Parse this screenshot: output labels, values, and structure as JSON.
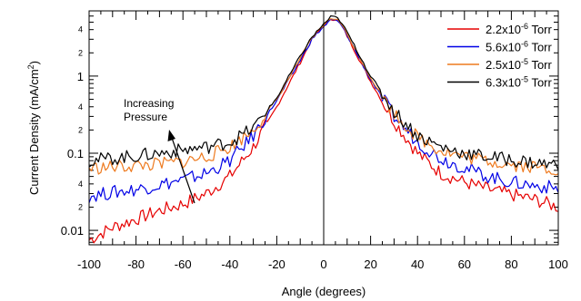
{
  "chart_data": {
    "type": "line",
    "title": "",
    "xlabel": "Angle (degrees)",
    "ylabel_main": "Current Density (mA/cm",
    "ylabel_sup": "2",
    "ylabel_close": ")",
    "xlim": [
      -100,
      100
    ],
    "ylim": [
      0.0065,
      7.0
    ],
    "yscale": "log",
    "x_ticks": [
      -100,
      -80,
      -60,
      -40,
      -20,
      0,
      20,
      40,
      60,
      80,
      100
    ],
    "x_tick_labels": [
      "-100",
      "-80",
      "-60",
      "-40",
      "-20",
      "0",
      "20",
      "40",
      "60",
      "80",
      "100"
    ],
    "y_major_ticks": [
      0.01,
      0.1,
      1
    ],
    "y_major_labels": [
      "0.01",
      "0.1",
      "1"
    ],
    "y_minor_labeled": [
      {
        "value": 0.02,
        "label": "2"
      },
      {
        "value": 0.04,
        "label": "4"
      },
      {
        "value": 0.2,
        "label": "2"
      },
      {
        "value": 0.4,
        "label": "4"
      },
      {
        "value": 2,
        "label": "2"
      },
      {
        "value": 4,
        "label": "4"
      }
    ],
    "vertical_line_x": 0,
    "legend_position": "top-right",
    "grid": false,
    "annotation": {
      "lines": [
        "Increasing",
        "Pressure"
      ],
      "arrow": "up"
    },
    "x": [
      -100,
      -90,
      -80,
      -70,
      -60,
      -50,
      -40,
      -30,
      -20,
      -10,
      -5,
      0,
      3,
      5,
      7,
      10,
      20,
      30,
      40,
      50,
      60,
      70,
      80,
      90,
      100
    ],
    "series": [
      {
        "name": "2.2x10",
        "exp": "-6",
        "unit": " Torr",
        "color": "#e60000",
        "values": [
          0.0075,
          0.011,
          0.014,
          0.018,
          0.022,
          0.03,
          0.05,
          0.12,
          0.4,
          1.5,
          3.0,
          4.5,
          5.5,
          5.5,
          4.9,
          3.3,
          0.85,
          0.26,
          0.1,
          0.055,
          0.042,
          0.034,
          0.029,
          0.025,
          0.02
        ]
      },
      {
        "name": "5.6x10",
        "exp": "-6",
        "unit": " Torr",
        "color": "#0000e6",
        "values": [
          0.028,
          0.031,
          0.034,
          0.039,
          0.045,
          0.055,
          0.08,
          0.17,
          0.48,
          1.6,
          3.0,
          4.4,
          5.3,
          5.3,
          4.8,
          3.4,
          0.9,
          0.3,
          0.14,
          0.085,
          0.065,
          0.05,
          0.042,
          0.038,
          0.035
        ]
      },
      {
        "name": "2.5x10",
        "exp": "-5",
        "unit": " Torr",
        "color": "#ee7a1f",
        "values": [
          0.064,
          0.066,
          0.069,
          0.072,
          0.078,
          0.09,
          0.12,
          0.2,
          0.5,
          1.7,
          3.1,
          4.6,
          5.6,
          5.6,
          5.0,
          3.5,
          0.95,
          0.33,
          0.16,
          0.11,
          0.09,
          0.08,
          0.072,
          0.066,
          0.062
        ]
      },
      {
        "name": "6.3x10",
        "exp": "-5",
        "unit": " Torr",
        "color": "#000000",
        "values": [
          0.08,
          0.086,
          0.092,
          0.1,
          0.11,
          0.12,
          0.14,
          0.21,
          0.52,
          1.8,
          3.2,
          4.7,
          5.8,
          5.8,
          5.2,
          3.7,
          1.0,
          0.35,
          0.17,
          0.12,
          0.1,
          0.09,
          0.082,
          0.075,
          0.07
        ]
      }
    ]
  }
}
